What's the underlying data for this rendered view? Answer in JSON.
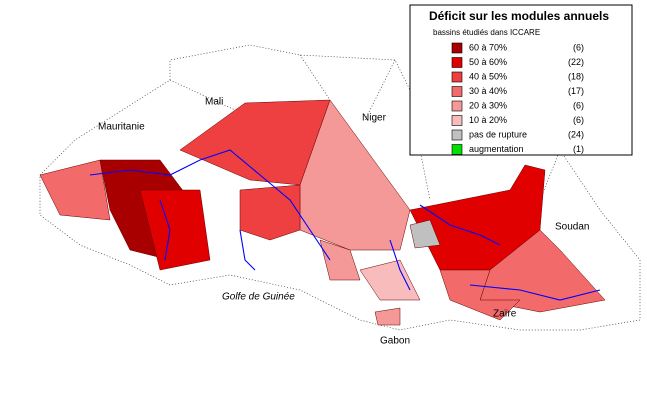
{
  "legend": {
    "title": "Déficit sur les modules annuels",
    "subtitle": "bassins étudiés dans ICCARE",
    "items": [
      {
        "label": "60  à 70%",
        "count": "(6)",
        "color": "#a80000"
      },
      {
        "label": "50  à 60%",
        "count": "(22)",
        "color": "#e00000"
      },
      {
        "label": "40  à 50%",
        "count": "(18)",
        "color": "#ee4040"
      },
      {
        "label": "30  à 40%",
        "count": "(17)",
        "color": "#f26a6a"
      },
      {
        "label": "20  à 30%",
        "count": "(6)",
        "color": "#f59898"
      },
      {
        "label": "10  à 20%",
        "count": "(6)",
        "color": "#f8bcbc"
      },
      {
        "label": "pas de rupture",
        "count": "(24)",
        "color": "#c0c0c0"
      },
      {
        "label": "augmentation",
        "count": "(1)",
        "color": "#00e000"
      }
    ]
  },
  "map_labels": {
    "mauritanie": "Mauritanie",
    "mali": "Mali",
    "niger": "Niger",
    "soudan": "Soudan",
    "golfe": "Golfe de Guinée",
    "zaire": "Zaïre",
    "gabon": "Gabon"
  }
}
